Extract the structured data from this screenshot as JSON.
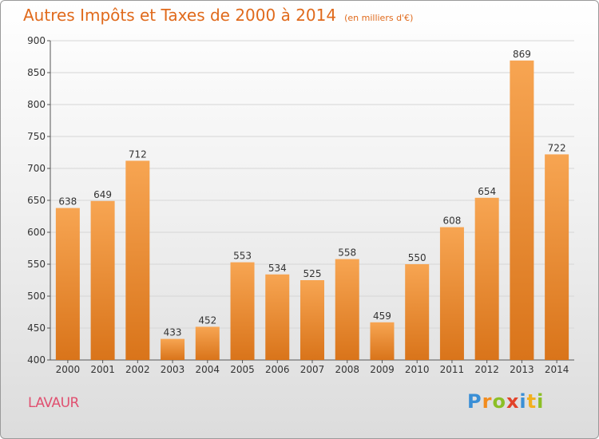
{
  "header": {
    "title": "Autres Impôts et Taxes de 2000 à 2014",
    "unit": "(en milliers d'€)"
  },
  "footer": {
    "place": "LAVAUR",
    "brand_letters": [
      {
        "char": "P",
        "color": "#3a8fd6"
      },
      {
        "char": "r",
        "color": "#f28c1e"
      },
      {
        "char": "o",
        "color": "#8cbf26"
      },
      {
        "char": "x",
        "color": "#e2432a"
      },
      {
        "char": "i",
        "color": "#3a8fd6"
      },
      {
        "char": "t",
        "color": "#f2b01e"
      },
      {
        "char": "i",
        "color": "#8cbf26"
      }
    ]
  },
  "chart_data": {
    "type": "bar",
    "title": "Autres Impôts et Taxes de 2000 à 2014",
    "subtitle": "(en milliers d'€)",
    "xlabel": "",
    "ylabel": "",
    "categories": [
      "2000",
      "2001",
      "2002",
      "2003",
      "2004",
      "2005",
      "2006",
      "2007",
      "2008",
      "2009",
      "2010",
      "2011",
      "2012",
      "2013",
      "2014"
    ],
    "values": [
      638,
      649,
      712,
      433,
      452,
      553,
      534,
      525,
      558,
      459,
      550,
      608,
      654,
      869,
      722
    ],
    "ylim": [
      400,
      900
    ],
    "yticks": [
      400,
      450,
      500,
      550,
      600,
      650,
      700,
      750,
      800,
      850,
      900
    ],
    "grid": true,
    "legend": "none",
    "bar_color_light": "#f7a552",
    "bar_color_dark": "#d9741a"
  }
}
